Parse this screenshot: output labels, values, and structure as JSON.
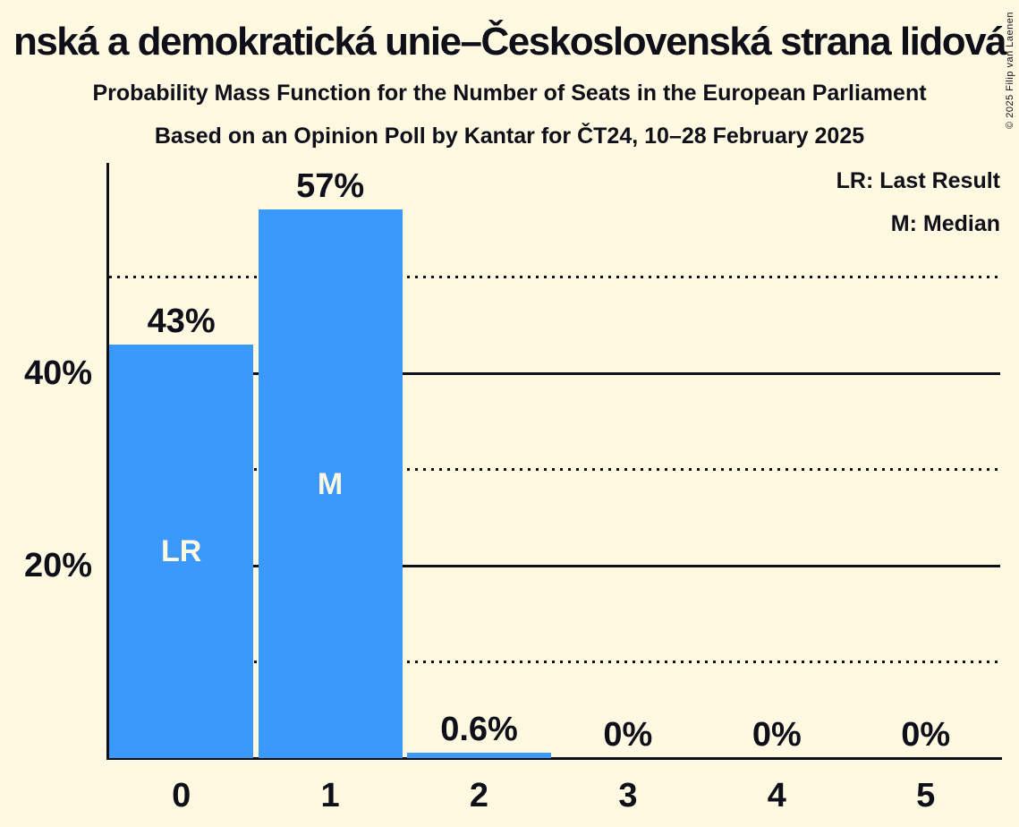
{
  "title": "nská a demokratická unie–Československá strana lidová",
  "subtitle1": "Probability Mass Function for the Number of Seats in the European Parliament",
  "subtitle2": "Based on an Opinion Poll by Kantar for ČT24, 10–28 February 2025",
  "copyright": "© 2025 Filip van Laenen",
  "legend": {
    "lr": "LR: Last Result",
    "m": "M: Median"
  },
  "colors": {
    "background": "#FFF9E1",
    "bar": "#3A99FA",
    "ink": "#0F0F1A",
    "bar_text": "#FFF9E1"
  },
  "chart_data": {
    "type": "bar",
    "title": "Probability Mass Function for the Number of Seats in the European Parliament",
    "categories": [
      "0",
      "1",
      "2",
      "3",
      "4",
      "5"
    ],
    "values": [
      43,
      57,
      0.6,
      0,
      0,
      0
    ],
    "bar_labels": [
      "43%",
      "57%",
      "0.6%",
      "0%",
      "0%",
      "0%"
    ],
    "annotations": [
      {
        "bar_index": 0,
        "text": "LR",
        "meaning": "Last Result"
      },
      {
        "bar_index": 1,
        "text": "M",
        "meaning": "Median"
      }
    ],
    "yticks": [
      {
        "pct": 20,
        "label": "20%"
      },
      {
        "pct": 40,
        "label": "40%"
      }
    ],
    "gridlines_solid_pct": [
      20,
      40
    ],
    "gridlines_dotted_pct": [
      10,
      30,
      50
    ],
    "ylim": [
      0,
      61.9
    ],
    "grid": true,
    "legend_position": "top-right"
  }
}
